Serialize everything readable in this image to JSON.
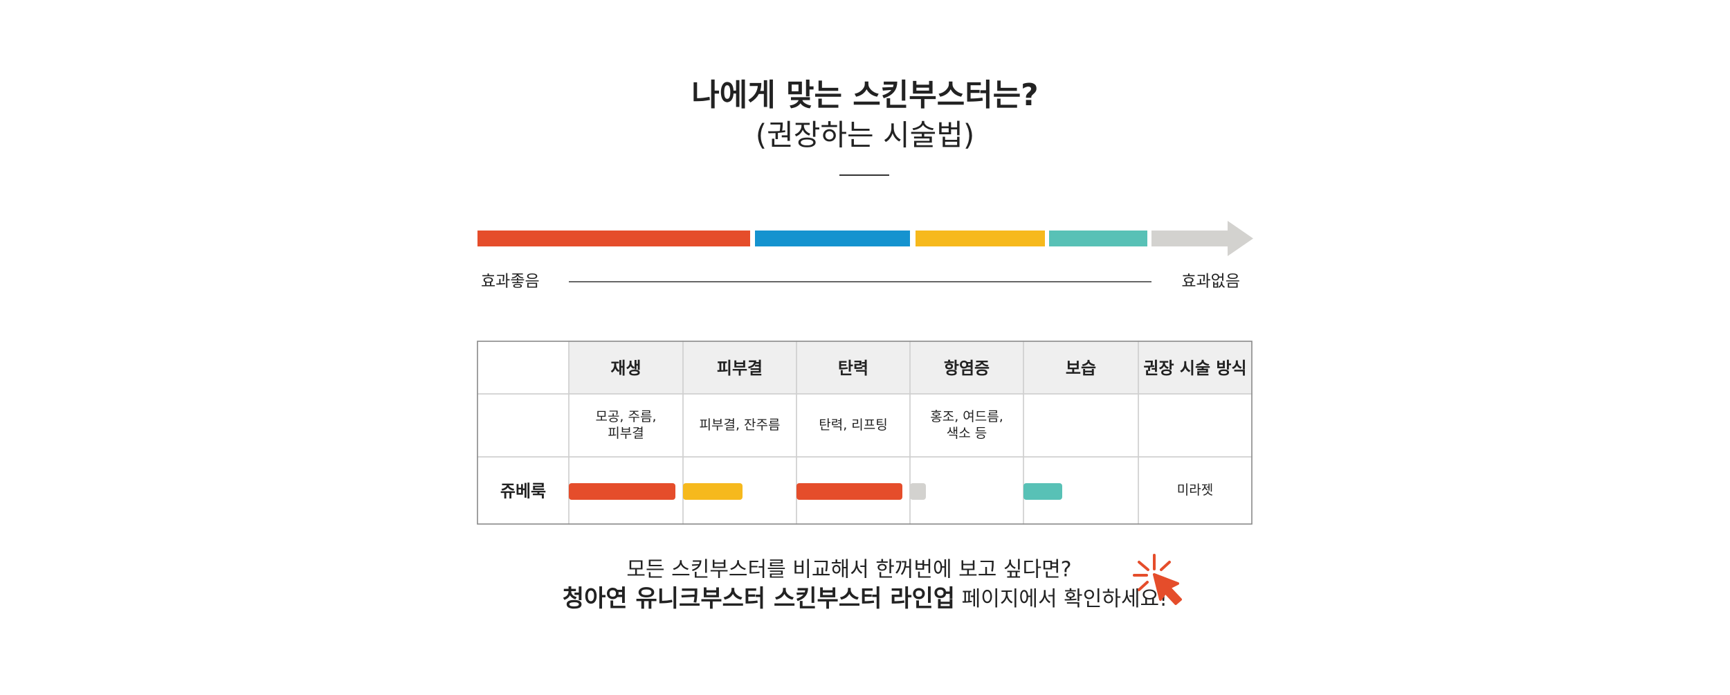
{
  "header": {
    "title": "나에게 맞는 스킨부스터는?",
    "subtitle": "(권장하는 시술법)"
  },
  "scale": {
    "left_label": "효과좋음",
    "right_label": "효과없음"
  },
  "table": {
    "columns": [
      "재생",
      "피부결",
      "탄력",
      "항염증",
      "보습",
      "권장 시술 방식"
    ],
    "descriptions": [
      [
        "모공, 주름,",
        "피부결"
      ],
      [
        "피부결, 잔주름"
      ],
      [
        "탄력, 리프팅"
      ],
      [
        "홍조, 여드름,",
        "색소 등"
      ]
    ],
    "row": {
      "name": "쥬베룩",
      "method": "미라젯"
    }
  },
  "footer": {
    "line1": "모든 스킨부스터를 비교해서 한꺼번에 보고 싶다면?",
    "line2_bold": "청아연 유니크부스터 스킨부스터 라인업",
    "line2_rest": " 페이지에서 확인하세요!"
  }
}
